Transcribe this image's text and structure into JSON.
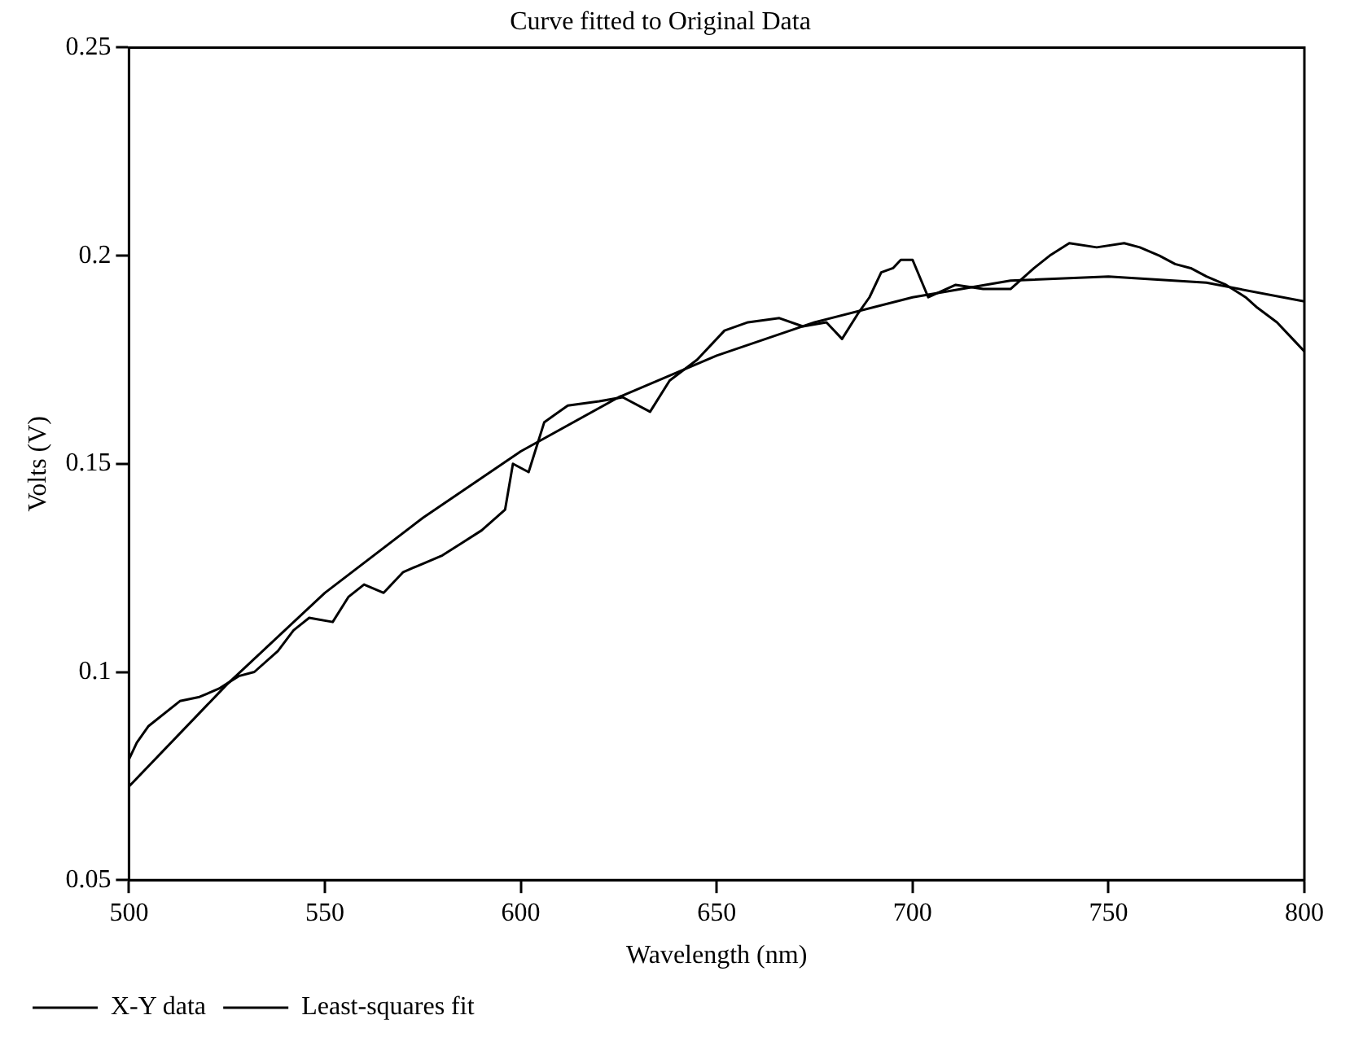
{
  "chart_data": {
    "type": "line",
    "title": "Curve fitted to Original Data",
    "xlabel": "Wavelength (nm)",
    "ylabel": "Volts (V)",
    "xlim": [
      500,
      800
    ],
    "xticks": [
      500,
      550,
      600,
      650,
      700,
      750,
      800
    ],
    "ylim": [
      0.05,
      0.25
    ],
    "yticks": [
      0.05,
      0.1,
      0.15,
      0.2,
      0.25
    ],
    "grid": false,
    "legend": "bottom left",
    "marker": "none",
    "line_style": "solid",
    "series": [
      {
        "name": "X-Y data",
        "color": "#000000",
        "x": [
          500,
          502,
          505,
          513,
          518,
          523,
          528,
          532,
          538,
          542,
          546,
          552,
          556,
          560,
          565,
          570,
          575,
          580,
          585,
          590,
          596,
          598,
          602,
          606,
          612,
          620,
          626,
          633,
          638,
          645,
          652,
          658,
          666,
          672,
          678,
          682,
          686,
          689,
          692,
          695,
          697,
          700,
          704,
          711,
          718,
          725,
          731,
          735,
          740,
          747,
          754,
          758,
          763,
          767,
          771,
          775,
          780,
          785,
          788,
          793,
          797,
          800
        ],
        "values": [
          0.079,
          0.083,
          0.087,
          0.093,
          0.094,
          0.096,
          0.099,
          0.1,
          0.105,
          0.11,
          0.113,
          0.112,
          0.118,
          0.121,
          0.119,
          0.124,
          0.126,
          0.128,
          0.131,
          0.134,
          0.139,
          0.15,
          0.148,
          0.16,
          0.164,
          0.165,
          0.166,
          0.1625,
          0.17,
          0.175,
          0.182,
          0.184,
          0.185,
          0.183,
          0.184,
          0.18,
          0.186,
          0.19,
          0.196,
          0.197,
          0.199,
          0.199,
          0.19,
          0.193,
          0.192,
          0.192,
          0.197,
          0.2,
          0.203,
          0.202,
          0.203,
          0.202,
          0.2,
          0.198,
          0.197,
          0.195,
          0.193,
          0.19,
          0.1875,
          0.184,
          0.18,
          0.177
        ]
      },
      {
        "name": "Least-squares fit",
        "color": "#000000",
        "x": [
          500,
          525,
          550,
          575,
          600,
          625,
          650,
          675,
          700,
          725,
          750,
          775,
          800
        ],
        "values": [
          0.0725,
          0.097,
          0.119,
          0.137,
          0.153,
          0.166,
          0.176,
          0.184,
          0.19,
          0.194,
          0.195,
          0.1935,
          0.189
        ]
      }
    ]
  }
}
